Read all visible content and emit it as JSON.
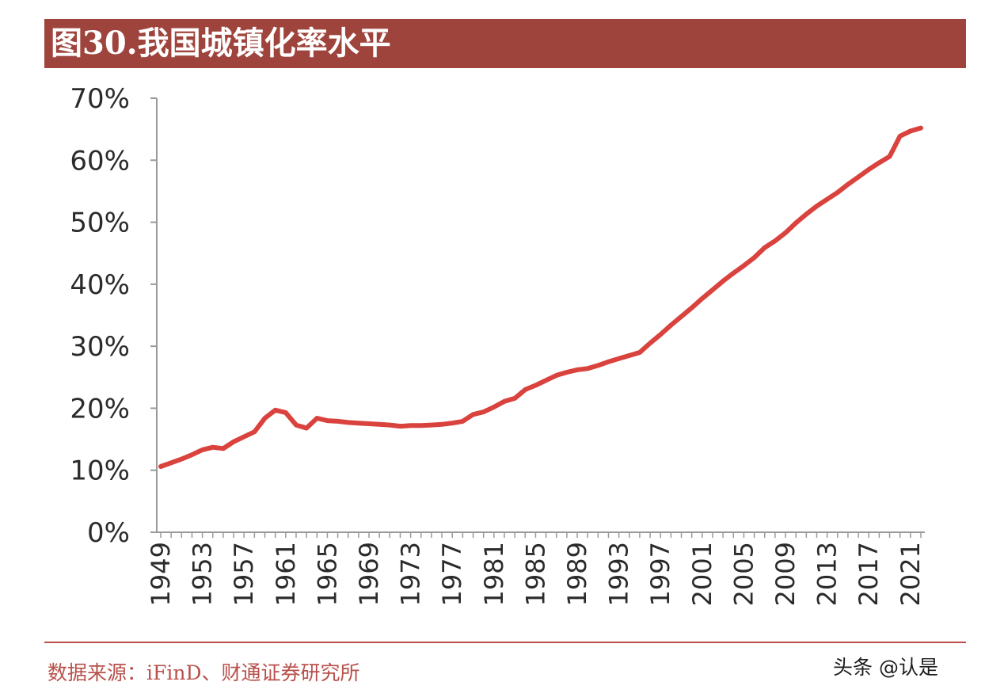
{
  "header": {
    "title": "图30.我国城镇化率水平"
  },
  "footer": {
    "source": "数据来源：iFinD、财通证券研究所",
    "watermark": "头条 @认是"
  },
  "colors": {
    "title_bg": "#9e443c",
    "line": "#d9423d",
    "source_text": "#b8504a"
  },
  "chart_data": {
    "type": "line",
    "title": "",
    "xlabel": "",
    "ylabel": "",
    "ylim": [
      0,
      70
    ],
    "xlim": [
      1949,
      2022
    ],
    "grid": false,
    "legend": "none",
    "y_ticks": [
      "0%",
      "10%",
      "20%",
      "30%",
      "40%",
      "50%",
      "60%",
      "70%"
    ],
    "x_ticks": [
      "1949",
      "1953",
      "1957",
      "1961",
      "1965",
      "1969",
      "1973",
      "1977",
      "1981",
      "1985",
      "1989",
      "1993",
      "1997",
      "2001",
      "2005",
      "2009",
      "2013",
      "2017",
      "2021"
    ],
    "series": [
      {
        "x": [
          1949,
          1950,
          1951,
          1952,
          1953,
          1954,
          1955,
          1956,
          1957,
          1958,
          1959,
          1960,
          1961,
          1962,
          1963,
          1964,
          1965,
          1966,
          1967,
          1968,
          1969,
          1970,
          1971,
          1972,
          1973,
          1974,
          1975,
          1976,
          1977,
          1978,
          1979,
          1980,
          1981,
          1982,
          1983,
          1984,
          1985,
          1986,
          1987,
          1988,
          1989,
          1990,
          1991,
          1992,
          1993,
          1994,
          1995,
          1996,
          1997,
          1998,
          1999,
          2000,
          2001,
          2002,
          2003,
          2004,
          2005,
          2006,
          2007,
          2008,
          2009,
          2010,
          2011,
          2012,
          2013,
          2014,
          2015,
          2016,
          2017,
          2018,
          2019,
          2020,
          2021,
          2022
        ],
        "values": [
          10.6,
          11.2,
          11.8,
          12.5,
          13.3,
          13.7,
          13.5,
          14.6,
          15.4,
          16.2,
          18.4,
          19.7,
          19.3,
          17.3,
          16.8,
          18.4,
          18.0,
          17.9,
          17.7,
          17.6,
          17.5,
          17.4,
          17.3,
          17.1,
          17.2,
          17.2,
          17.3,
          17.4,
          17.6,
          17.9,
          19.0,
          19.4,
          20.2,
          21.1,
          21.6,
          23.0,
          23.7,
          24.5,
          25.3,
          25.8,
          26.2,
          26.4,
          26.9,
          27.5,
          28.0,
          28.5,
          29.0,
          30.5,
          31.9,
          33.4,
          34.8,
          36.2,
          37.7,
          39.1,
          40.5,
          41.8,
          43.0,
          44.3,
          45.9,
          47.0,
          48.3,
          49.9,
          51.3,
          52.6,
          53.7,
          54.8,
          56.1,
          57.3,
          58.5,
          59.6,
          60.6,
          63.9,
          64.7,
          65.2
        ]
      }
    ]
  }
}
